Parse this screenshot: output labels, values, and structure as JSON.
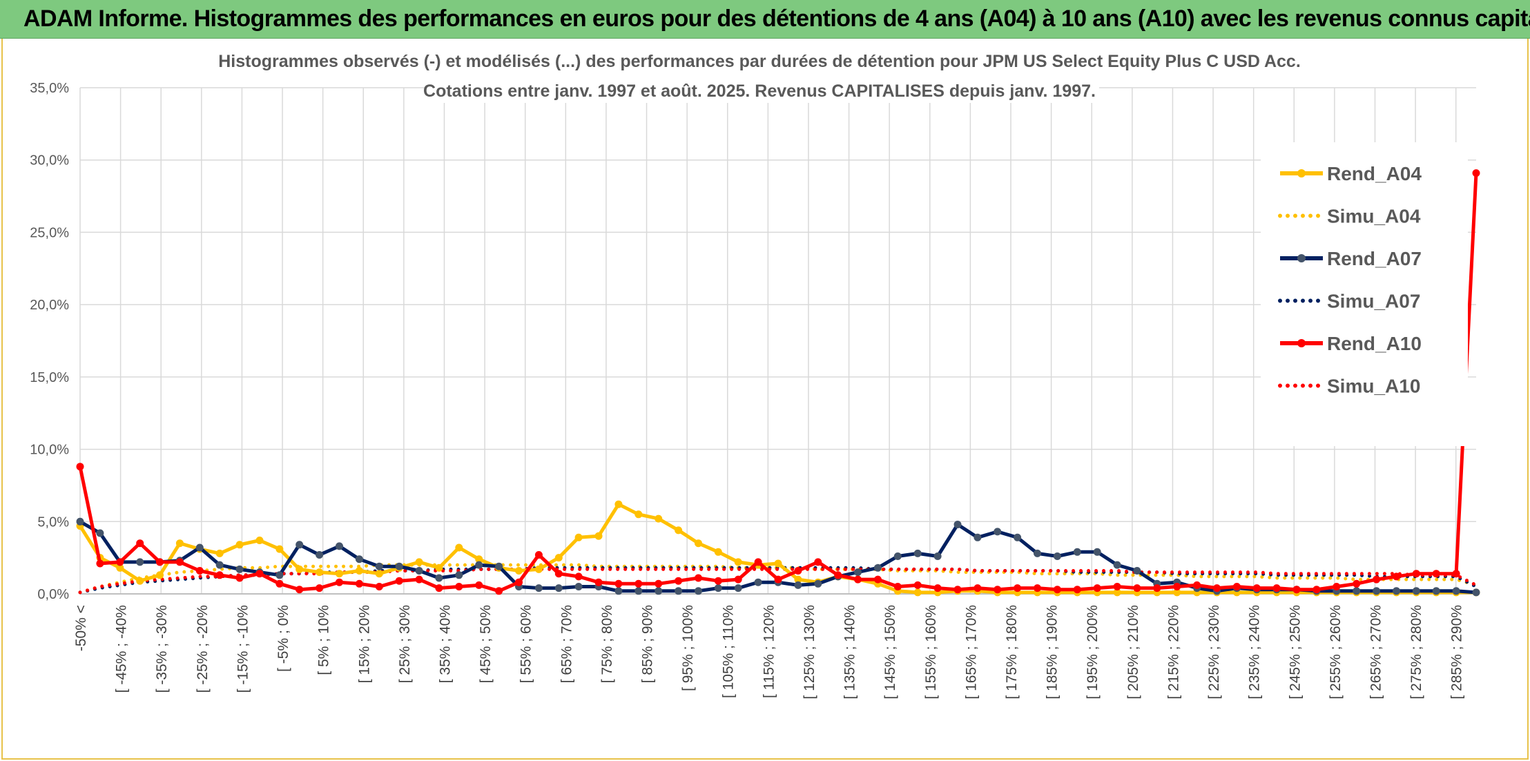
{
  "banner": {
    "title": "ADAM Informe. Histogrammes des performances en euros pour des détentions de 4 ans (A04) à 10 ans (A10) avec les revenus connus capitalisés"
  },
  "chart_data": {
    "type": "line",
    "title_line1": "Histogrammes observés (-) et modélisés (...) des performances par durées de détention pour JPM US Select Equity Plus C USD Acc.",
    "title_line2": "Cotations entre janv. 1997 et août. 2025. Revenus CAPITALISES depuis janv. 1997.",
    "ylim": [
      0,
      35
    ],
    "yticks": [
      "0,0%",
      "5,0%",
      "10,0%",
      "15,0%",
      "20,0%",
      "25,0%",
      "30,0%",
      "35,0%"
    ],
    "grid": true,
    "legend_position": "right",
    "x_labels": [
      "-50% <",
      "[ -45% ; -40%",
      "[ -35% ; -30%",
      "[ -25% ; -20%",
      "[ -15% ; -10%",
      "[ -5% ; 0%",
      "[ 5% ; 10%",
      "[ 15% ; 20%",
      "[ 25% ; 30%",
      "[ 35% ; 40%",
      "[ 45% ; 50%",
      "[ 55% ; 60%",
      "[ 65% ; 70%",
      "[ 75% ; 80%",
      "[ 85% ; 90%",
      "[ 95% ; 100%",
      "[ 105% ; 110%",
      "[ 115% ; 120%",
      "[ 125% ; 130%",
      "[ 135% ; 140%",
      "[ 145% ; 150%",
      "[ 155% ; 160%",
      "[ 165% ; 170%",
      "[ 175% ; 180%",
      "[ 185% ; 190%",
      "[ 195% ; 200%",
      "[ 205% ; 210%",
      "[ 215% ; 220%",
      "[ 225% ; 230%",
      "[ 235% ; 240%",
      "[ 245% ; 250%",
      "[ 255% ; 260%",
      "[ 265% ; 270%",
      "[ 275% ; 280%",
      "[ 285% ; 290%"
    ],
    "series": [
      {
        "name": "Rend_A04",
        "style": "solid",
        "color": "#ffc000",
        "markers": true,
        "values": [
          4.7,
          2.5,
          1.8,
          0.9,
          1.3,
          3.5,
          3.1,
          2.8,
          3.4,
          3.7,
          3.1,
          1.7,
          1.5,
          1.4,
          1.6,
          1.4,
          1.8,
          2.2,
          1.8,
          3.2,
          2.4,
          1.8,
          1.6,
          1.7,
          2.5,
          3.9,
          4.0,
          6.2,
          5.5,
          5.2,
          4.4,
          3.5,
          2.9,
          2.2,
          2.0,
          2.1,
          1.0,
          0.8,
          1.2,
          1.0,
          0.7,
          0.2,
          0.1,
          0.1,
          0.2,
          0.2,
          0.1,
          0.1,
          0.1,
          0.1,
          0.1,
          0.1,
          0.1,
          0.1,
          0.1,
          0.1,
          0.1,
          0.1,
          0.1,
          0.1,
          0.1,
          0.1,
          0.1,
          0.1,
          0.1,
          0.1,
          0.1,
          0.1,
          0.1,
          0.1,
          0.1
        ]
      },
      {
        "name": "Simu_A04",
        "style": "dotted",
        "color": "#ffc000",
        "markers": false,
        "values": [
          0.1,
          0.5,
          0.8,
          1.1,
          1.3,
          1.5,
          1.6,
          1.7,
          1.8,
          1.8,
          1.9,
          1.9,
          1.9,
          1.9,
          1.9,
          2.0,
          2.0,
          2.0,
          2.0,
          2.0,
          2.0,
          2.0,
          2.0,
          2.0,
          2.0,
          2.0,
          1.9,
          1.9,
          1.9,
          1.9,
          1.9,
          1.9,
          1.9,
          1.8,
          1.8,
          1.8,
          1.8,
          1.7,
          1.7,
          1.7,
          1.7,
          1.6,
          1.6,
          1.6,
          1.5,
          1.5,
          1.5,
          1.5,
          1.4,
          1.4,
          1.4,
          1.4,
          1.3,
          1.3,
          1.3,
          1.3,
          1.2,
          1.2,
          1.2,
          1.2,
          1.1,
          1.1,
          1.1,
          1.1,
          1.0,
          1.0,
          1.0,
          1.0,
          1.0,
          1.0,
          0.6
        ]
      },
      {
        "name": "Rend_A07",
        "style": "solid",
        "color": "#002060",
        "markers": true,
        "values": [
          5.0,
          4.2,
          2.2,
          2.2,
          2.2,
          2.3,
          3.2,
          2.0,
          1.7,
          1.5,
          1.3,
          3.4,
          2.7,
          3.3,
          2.4,
          1.9,
          1.9,
          1.6,
          1.1,
          1.3,
          2.0,
          1.9,
          0.5,
          0.4,
          0.4,
          0.5,
          0.5,
          0.2,
          0.2,
          0.2,
          0.2,
          0.2,
          0.4,
          0.4,
          0.8,
          0.8,
          0.6,
          0.7,
          1.2,
          1.5,
          1.8,
          2.6,
          2.8,
          2.6,
          4.8,
          3.9,
          4.3,
          3.9,
          2.8,
          2.6,
          2.9,
          2.9,
          2.0,
          1.6,
          0.7,
          0.8,
          0.4,
          0.2,
          0.4,
          0.3,
          0.3,
          0.3,
          0.2,
          0.2,
          0.2,
          0.2,
          0.2,
          0.2,
          0.2,
          0.2,
          0.1
        ]
      },
      {
        "name": "Simu_A07",
        "style": "dotted",
        "color": "#002060",
        "markers": false,
        "values": [
          0.1,
          0.4,
          0.6,
          0.8,
          0.9,
          1.0,
          1.1,
          1.2,
          1.3,
          1.3,
          1.4,
          1.4,
          1.5,
          1.5,
          1.5,
          1.6,
          1.6,
          1.6,
          1.7,
          1.7,
          1.7,
          1.7,
          1.7,
          1.8,
          1.8,
          1.8,
          1.8,
          1.8,
          1.8,
          1.8,
          1.8,
          1.8,
          1.8,
          1.8,
          1.8,
          1.8,
          1.8,
          1.8,
          1.8,
          1.8,
          1.7,
          1.7,
          1.7,
          1.7,
          1.7,
          1.6,
          1.6,
          1.6,
          1.6,
          1.6,
          1.5,
          1.5,
          1.5,
          1.5,
          1.5,
          1.4,
          1.4,
          1.4,
          1.4,
          1.4,
          1.3,
          1.3,
          1.3,
          1.3,
          1.3,
          1.2,
          1.2,
          1.2,
          1.2,
          1.2,
          0.5
        ]
      },
      {
        "name": "Rend_A10",
        "style": "solid",
        "color": "#ff0000",
        "markers": true,
        "values": [
          8.8,
          2.1,
          2.2,
          3.5,
          2.2,
          2.2,
          1.6,
          1.3,
          1.1,
          1.4,
          0.7,
          0.3,
          0.4,
          0.8,
          0.7,
          0.5,
          0.9,
          1.0,
          0.4,
          0.5,
          0.6,
          0.2,
          0.8,
          2.7,
          1.4,
          1.2,
          0.8,
          0.7,
          0.7,
          0.7,
          0.9,
          1.1,
          0.9,
          1.0,
          2.2,
          1.0,
          1.6,
          2.2,
          1.3,
          1.0,
          1.0,
          0.5,
          0.6,
          0.4,
          0.3,
          0.4,
          0.3,
          0.4,
          0.4,
          0.3,
          0.3,
          0.4,
          0.5,
          0.4,
          0.4,
          0.5,
          0.6,
          0.4,
          0.5,
          0.4,
          0.4,
          0.3,
          0.3,
          0.5,
          0.7,
          1.0,
          1.2,
          1.4,
          1.4,
          1.4,
          29.1
        ]
      },
      {
        "name": "Simu_A10",
        "style": "dotted",
        "color": "#ff0000",
        "markers": false,
        "values": [
          0.1,
          0.5,
          0.7,
          0.9,
          1.0,
          1.1,
          1.2,
          1.2,
          1.3,
          1.3,
          1.4,
          1.4,
          1.4,
          1.5,
          1.5,
          1.5,
          1.6,
          1.6,
          1.6,
          1.6,
          1.7,
          1.7,
          1.7,
          1.7,
          1.7,
          1.7,
          1.7,
          1.7,
          1.7,
          1.7,
          1.7,
          1.7,
          1.7,
          1.7,
          1.7,
          1.7,
          1.7,
          1.7,
          1.7,
          1.7,
          1.7,
          1.7,
          1.7,
          1.7,
          1.7,
          1.6,
          1.6,
          1.6,
          1.6,
          1.6,
          1.6,
          1.6,
          1.6,
          1.5,
          1.5,
          1.5,
          1.5,
          1.5,
          1.5,
          1.5,
          1.4,
          1.4,
          1.4,
          1.4,
          1.4,
          1.4,
          1.4,
          1.3,
          1.3,
          1.3,
          0.6
        ]
      }
    ]
  }
}
